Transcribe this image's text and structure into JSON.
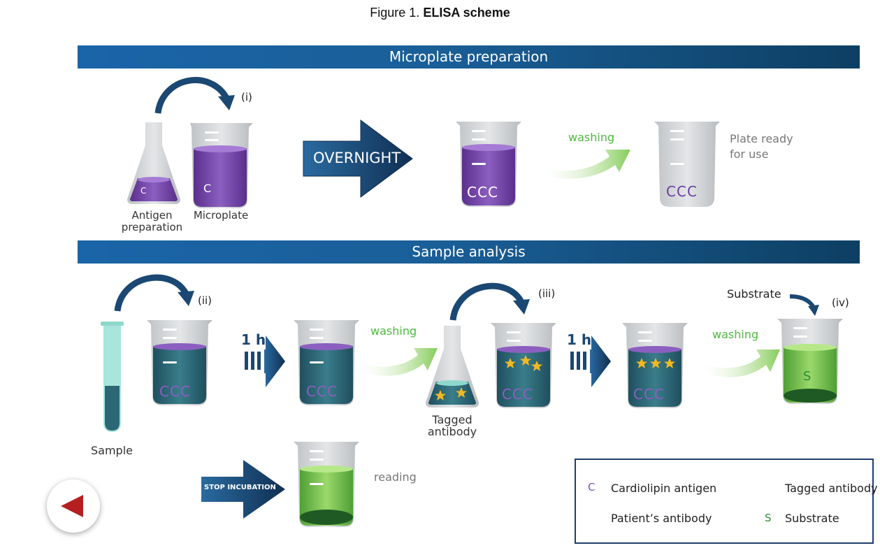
{
  "figure": {
    "prefix": "Figure 1.",
    "title": "ELISA scheme"
  },
  "banners": {
    "preparation": "Microplate preparation",
    "analysis": "Sample analysis"
  },
  "labels": {
    "antigen_prep_line1": "Antigen",
    "antigen_prep_line2": "preparation",
    "microplate": "Microplate",
    "plate_ready_line1": "Plate ready",
    "plate_ready_line2": "for use",
    "sample": "Sample",
    "tagged_antibody_line1": "Tagged",
    "tagged_antibody_line2": "antibody",
    "substrate": "Substrate",
    "reading": "reading"
  },
  "steps": {
    "i": "(i)",
    "ii": "(ii)",
    "iii": "(iii)",
    "iv": "(iv)"
  },
  "arrows": {
    "overnight": "OVERNIGHT",
    "hour": "1 h",
    "stop": "STOP INCUBATION"
  },
  "washing": "washing",
  "legend": {
    "cardiolipin": "Cardiolipin antigen",
    "tagged": "Tagged antibody",
    "patient": "Patient’s antibody",
    "substrate": "Substrate"
  },
  "glyphs": {
    "antigen": "C",
    "substrate": "S"
  },
  "colors": {
    "banner": "#1a64a8",
    "purple_liquid": "#6a3fa0",
    "teal_liquid": "#2c6775",
    "green_liquid": "#74c24a",
    "washing_green": "#4cbb3c",
    "arrow_navy": "#1b4873",
    "back_red": "#b51f1f"
  }
}
